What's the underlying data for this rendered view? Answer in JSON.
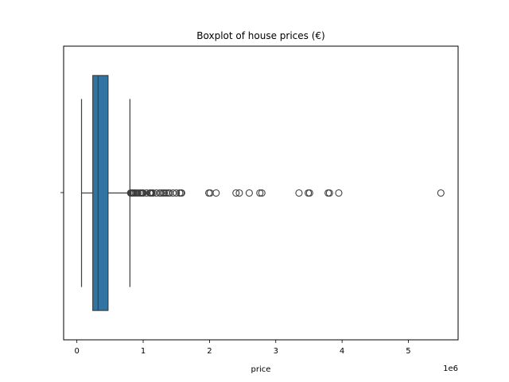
{
  "chart_data": {
    "type": "boxplot",
    "orientation": "horizontal",
    "title": "Boxplot of house prices (€)",
    "xlabel": "price",
    "ylabel": "",
    "x_offset_label": "1e6",
    "xlim": [
      -0.2,
      5.75
    ],
    "xticks": [
      0,
      1,
      2,
      3,
      4,
      5
    ],
    "xtick_labels": [
      "0",
      "1",
      "2",
      "3",
      "4",
      "5"
    ],
    "grid": false,
    "box": {
      "whisker_low": 0.07,
      "q1": 0.24,
      "median": 0.32,
      "q3": 0.47,
      "whisker_high": 0.8
    },
    "outliers": [
      0.81,
      0.82,
      0.83,
      0.84,
      0.85,
      0.86,
      0.88,
      0.9,
      0.92,
      0.95,
      0.97,
      0.98,
      0.99,
      1.0,
      1.05,
      1.1,
      1.11,
      1.12,
      1.13,
      1.15,
      1.2,
      1.25,
      1.27,
      1.3,
      1.32,
      1.35,
      1.38,
      1.4,
      1.45,
      1.5,
      1.55,
      1.57,
      1.58,
      1.99,
      2.01,
      2.1,
      2.4,
      2.45,
      2.6,
      2.76,
      2.79,
      3.35,
      3.49,
      3.51,
      3.79,
      3.81,
      3.95,
      5.49
    ],
    "box_color": "#3274a1",
    "line_color": "#3d3d3d"
  }
}
